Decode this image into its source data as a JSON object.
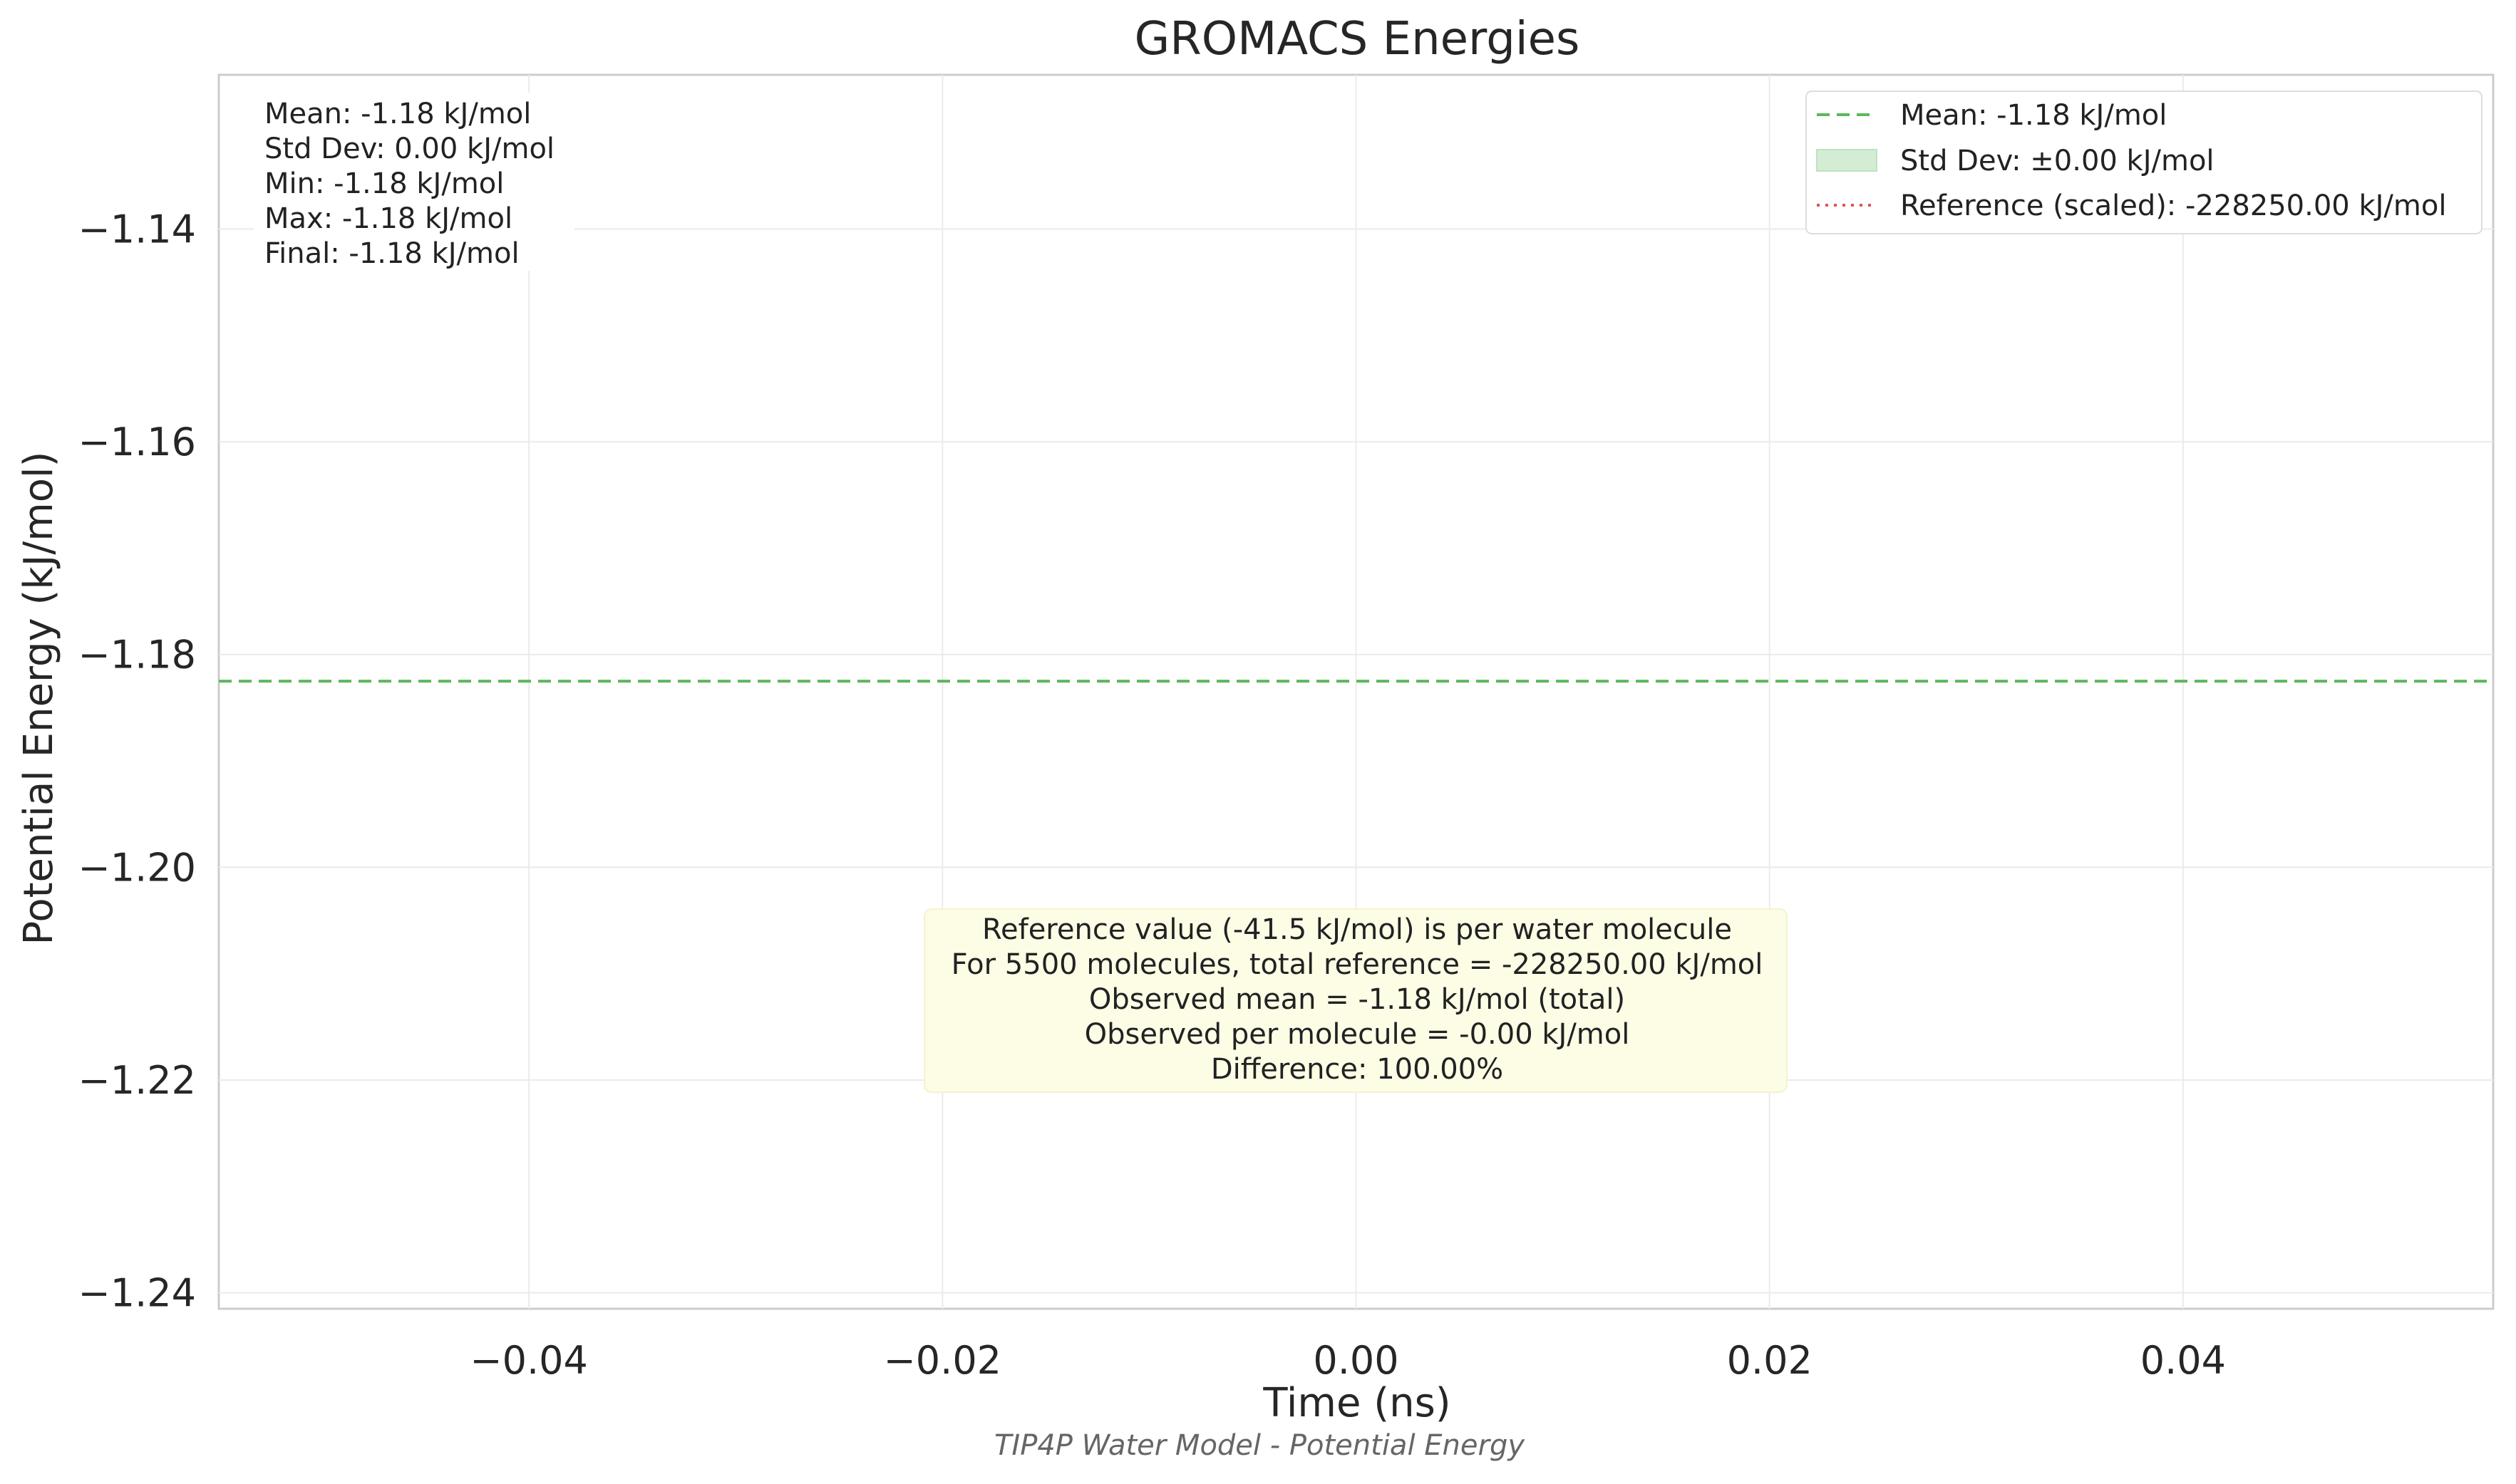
{
  "chart_data": {
    "type": "line",
    "title": "GROMACS Energies",
    "xlabel": "Time (ns)",
    "ylabel": "Potential Energy (kJ/mol)",
    "caption": "TIP4P Water Model - Potential Energy",
    "xlim": [
      -0.055,
      0.055
    ],
    "ylim": [
      -1.2415,
      -1.1255
    ],
    "x_ticks": [
      -0.04,
      -0.02,
      0.0,
      0.02,
      0.04
    ],
    "x_tick_labels": [
      "−0.04",
      "−0.02",
      "0.00",
      "0.02",
      "0.04"
    ],
    "y_ticks": [
      -1.14,
      -1.16,
      -1.18,
      -1.2,
      -1.22,
      -1.24
    ],
    "y_tick_labels": [
      "−1.14",
      "−1.16",
      "−1.18",
      "−1.20",
      "−1.22",
      "−1.24"
    ],
    "grid": true,
    "series": [
      {
        "name": "Mean: -1.18 kJ/mol",
        "kind": "hline",
        "style": "dashed",
        "color": "#5cb85c",
        "y": -1.1825
      },
      {
        "name": "Std Dev: ±0.00 kJ/mol",
        "kind": "band",
        "color": "#d4ecd4",
        "y": -1.1825,
        "std": 0.0
      },
      {
        "name": "Reference (scaled): -228250.00 kJ/mol",
        "kind": "hline",
        "style": "dotted",
        "color": "#e05555",
        "y": -228250.0
      }
    ],
    "legend_placement": "top-right",
    "legend": [
      "Mean: -1.18 kJ/mol",
      "Std Dev: ±0.00 kJ/mol",
      "Reference (scaled): -228250.00 kJ/mol"
    ],
    "stats_box": [
      "Mean: -1.18 kJ/mol",
      "Std Dev: 0.00 kJ/mol",
      "Min: -1.18 kJ/mol",
      "Max: -1.18 kJ/mol",
      "Final: -1.18 kJ/mol"
    ],
    "annotation": [
      "Reference value (-41.5 kJ/mol) is per water molecule",
      "For 5500 molecules, total reference = -228250.00 kJ/mol",
      "Observed mean = -1.18 kJ/mol (total)",
      "Observed per molecule = -0.00 kJ/mol",
      "Difference: 100.00%"
    ]
  }
}
